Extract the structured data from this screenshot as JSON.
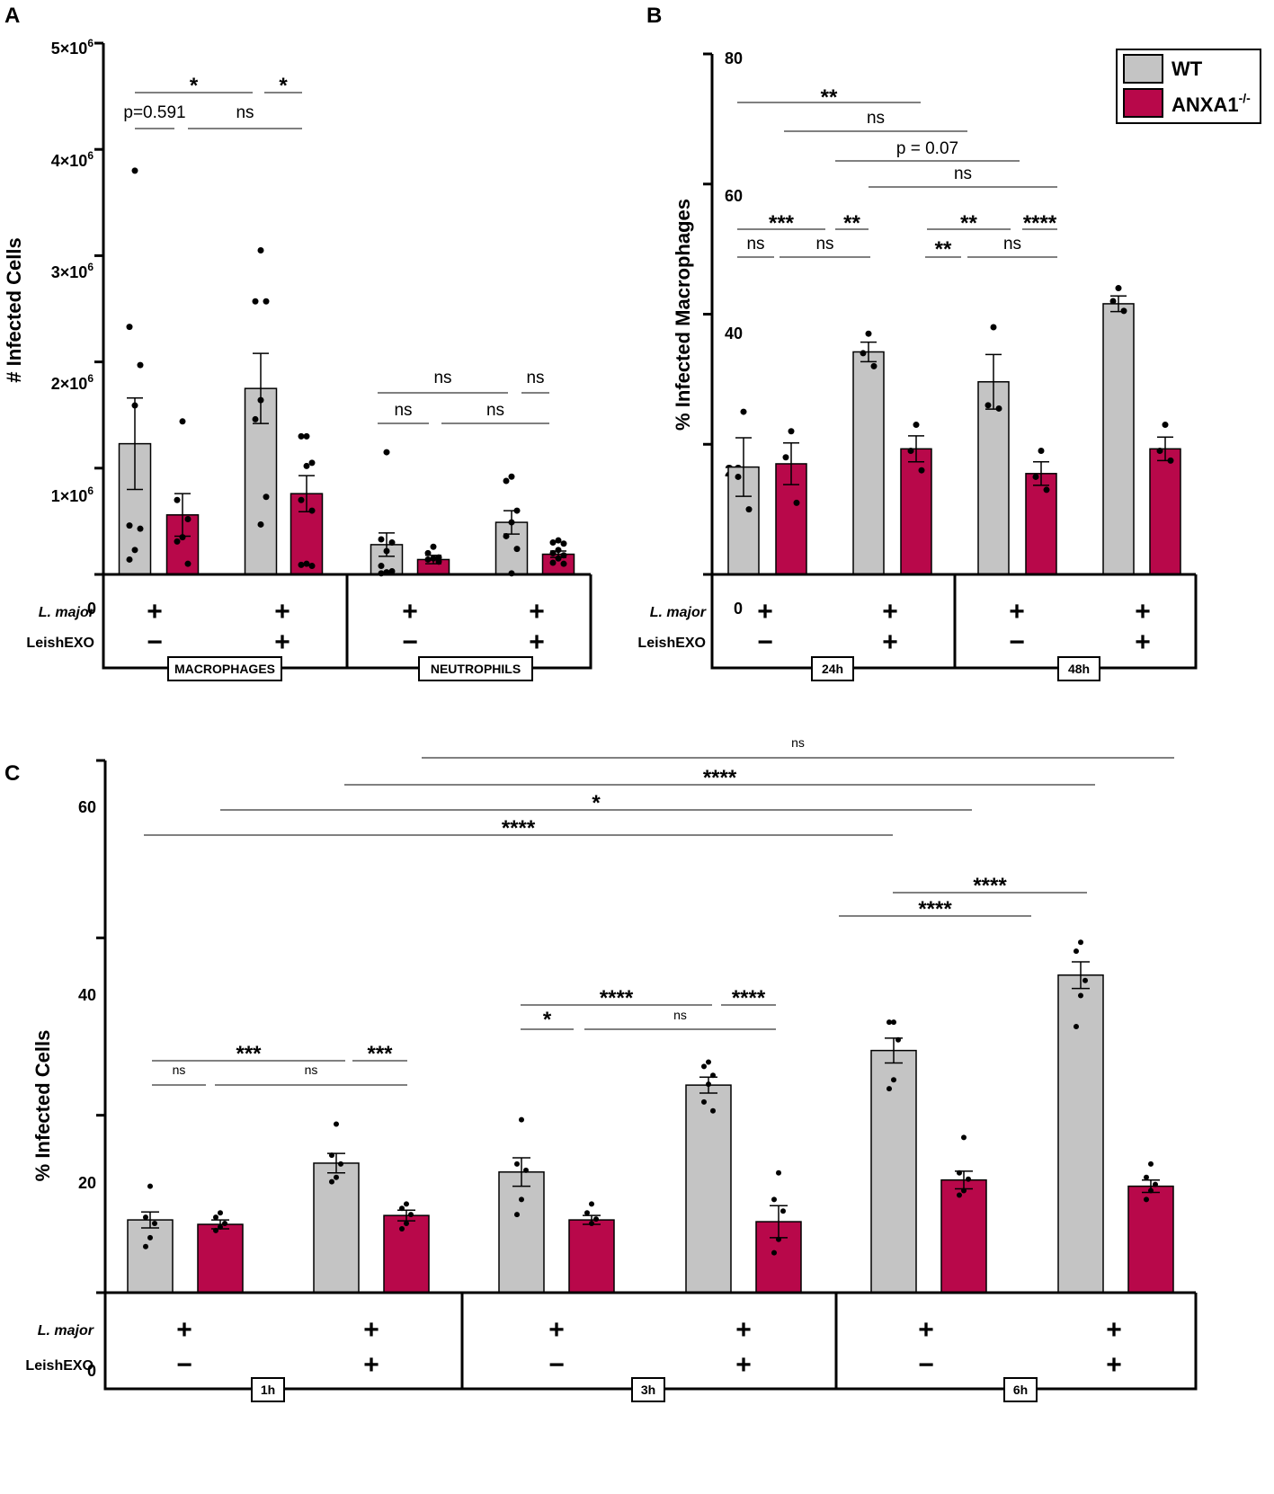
{
  "colors": {
    "wt": "#c4c4c4",
    "ko": "#b8084a",
    "axis": "#000000"
  },
  "chart_data": [
    {
      "panel": "A",
      "type": "bar",
      "ylabel": "# Infected Cells",
      "ylim": [
        0,
        5000000
      ],
      "yticks": [
        {
          "v": 0,
          "label": "0",
          "sup": ""
        },
        {
          "v": 1000000,
          "label": "1×10",
          "sup": "6"
        },
        {
          "v": 2000000,
          "label": "2×10",
          "sup": "6"
        },
        {
          "v": 3000000,
          "label": "3×10",
          "sup": "6"
        },
        {
          "v": 4000000,
          "label": "4×10",
          "sup": "6"
        },
        {
          "v": 5000000,
          "label": "5×10",
          "sup": "6"
        }
      ],
      "bars": [
        {
          "series": "WT",
          "mean": 1230000,
          "err": 430000,
          "points": [
            3800000,
            2330000,
            1970000,
            1590000,
            460000,
            430000,
            230000,
            140000
          ]
        },
        {
          "series": "ANXA1-/-",
          "mean": 560000,
          "err": 200000,
          "points": [
            1440000,
            700000,
            520000,
            350000,
            310000,
            100000
          ]
        },
        {
          "series": "WT",
          "mean": 1750000,
          "err": 330000,
          "points": [
            3050000,
            2570000,
            2570000,
            1640000,
            1460000,
            730000,
            470000
          ]
        },
        {
          "series": "ANXA1-/-",
          "mean": 760000,
          "err": 170000,
          "points": [
            1300000,
            1300000,
            1050000,
            1020000,
            700000,
            600000,
            100000,
            90000,
            80000
          ]
        },
        {
          "series": "WT",
          "mean": 280000,
          "err": 110000,
          "points": [
            1150000,
            330000,
            300000,
            220000,
            80000,
            30000,
            20000,
            10000
          ]
        },
        {
          "series": "ANXA1-/-",
          "mean": 140000,
          "err": 40000,
          "points": [
            260000,
            200000,
            160000,
            150000,
            140000,
            120000
          ]
        },
        {
          "series": "WT",
          "mean": 490000,
          "err": 110000,
          "points": [
            920000,
            880000,
            600000,
            490000,
            360000,
            240000,
            10000
          ]
        },
        {
          "series": "ANXA1-/-",
          "mean": 190000,
          "err": 30000,
          "points": [
            320000,
            300000,
            290000,
            230000,
            200000,
            180000,
            150000,
            110000,
            100000
          ]
        }
      ],
      "comparisons": [
        {
          "from": 0,
          "to": 2,
          "label": "*"
        },
        {
          "from": 2,
          "to": 3,
          "label": "*"
        },
        {
          "from": 0,
          "to": 1,
          "label": "p=0.591"
        },
        {
          "from": 1,
          "to": 3,
          "label": "ns"
        },
        {
          "from": 4,
          "to": 6,
          "label": "ns"
        },
        {
          "from": 6,
          "to": 7,
          "label": "ns"
        },
        {
          "from": 4,
          "to": 5,
          "label": "ns"
        },
        {
          "from": 5,
          "to": 7,
          "label": "ns"
        }
      ],
      "conditions": {
        "rows": [
          "L. major",
          "LeishEXO"
        ],
        "lmajor": [
          "+",
          "+",
          "+",
          "+"
        ],
        "leishexo": [
          "−",
          "+",
          "−",
          "+"
        ]
      },
      "groups": [
        "MACROPHAGES",
        "NEUTROPHILS"
      ]
    },
    {
      "panel": "B",
      "type": "bar",
      "ylabel": "% Infected Macrophages",
      "ylim": [
        0,
        80
      ],
      "yticks": [
        {
          "v": 0,
          "label": "0"
        },
        {
          "v": 20,
          "label": "20"
        },
        {
          "v": 40,
          "label": "40"
        },
        {
          "v": 60,
          "label": "60"
        },
        {
          "v": 80,
          "label": "80"
        }
      ],
      "bars": [
        {
          "series": "WT",
          "mean": 16.5,
          "err": 4.5,
          "points": [
            25,
            15,
            10
          ]
        },
        {
          "series": "ANXA1-/-",
          "mean": 17,
          "err": 3.2,
          "points": [
            22,
            18,
            11
          ]
        },
        {
          "series": "WT",
          "mean": 34.2,
          "err": 1.5,
          "points": [
            37,
            34,
            32
          ]
        },
        {
          "series": "ANXA1-/-",
          "mean": 19.3,
          "err": 2,
          "points": [
            23,
            19,
            16
          ]
        },
        {
          "series": "WT",
          "mean": 29.6,
          "err": 4.2,
          "points": [
            38,
            26,
            25.5
          ]
        },
        {
          "series": "ANXA1-/-",
          "mean": 15.5,
          "err": 1.8,
          "points": [
            19,
            15,
            13
          ]
        },
        {
          "series": "WT",
          "mean": 41.6,
          "err": 1.2,
          "points": [
            44,
            42,
            40.5
          ]
        },
        {
          "series": "ANXA1-/-",
          "mean": 19.3,
          "err": 1.8,
          "points": [
            23,
            19,
            17.5
          ]
        }
      ],
      "comparisons": [
        {
          "from": 0,
          "to": 4,
          "label": "**"
        },
        {
          "from": 1,
          "to": 5,
          "label": "ns"
        },
        {
          "from": 2,
          "to": 6,
          "label": "p = 0.07"
        },
        {
          "from": 3,
          "to": 7,
          "label": "ns"
        },
        {
          "from": 0,
          "to": 2,
          "label": "***"
        },
        {
          "from": 2,
          "to": 3,
          "label": "**"
        },
        {
          "from": 4,
          "to": 6,
          "label": "**"
        },
        {
          "from": 6,
          "to": 7,
          "label": "****"
        },
        {
          "from": 0,
          "to": 1,
          "label": "ns"
        },
        {
          "from": 1,
          "to": 3,
          "label": "ns"
        },
        {
          "from": 4,
          "to": 5,
          "label": "**"
        },
        {
          "from": 5,
          "to": 7,
          "label": "ns"
        }
      ],
      "conditions": {
        "rows": [
          "L. major",
          "LeishEXO"
        ],
        "lmajor": [
          "+",
          "+",
          "+",
          "+"
        ],
        "leishexo": [
          "−",
          "+",
          "−",
          "+"
        ]
      },
      "groups": [
        "24h",
        "48h"
      ],
      "legend": [
        {
          "name": "WT"
        },
        {
          "name": "ANXA1",
          "sup": "-/-"
        }
      ]
    },
    {
      "panel": "C",
      "type": "bar",
      "ylabel": "% Infected Cells",
      "ylim": [
        0,
        60
      ],
      "yticks": [
        {
          "v": 0,
          "label": "0"
        },
        {
          "v": 20,
          "label": "20"
        },
        {
          "v": 40,
          "label": "40"
        },
        {
          "v": 60,
          "label": "60"
        }
      ],
      "bars": [
        {
          "series": "WT",
          "mean": 8.2,
          "err": 0.9,
          "points": [
            12,
            8.5,
            7.8,
            6.2,
            5.2
          ]
        },
        {
          "series": "ANXA1-/-",
          "mean": 7.7,
          "err": 0.5,
          "points": [
            9,
            8.5,
            7.8,
            7.4,
            7
          ]
        },
        {
          "series": "WT",
          "mean": 14.6,
          "err": 1.1,
          "points": [
            19,
            15.5,
            14.5,
            13,
            12.5
          ]
        },
        {
          "series": "ANXA1-/-",
          "mean": 8.7,
          "err": 0.6,
          "points": [
            10,
            9.5,
            8.8,
            7.8,
            7.2
          ]
        },
        {
          "series": "WT",
          "mean": 13.6,
          "err": 1.6,
          "points": [
            19.5,
            14.5,
            13.8,
            10.5,
            8.8
          ]
        },
        {
          "series": "ANXA1-/-",
          "mean": 8.2,
          "err": 0.5,
          "points": [
            10,
            9,
            8.3,
            7.8
          ]
        },
        {
          "series": "WT",
          "mean": 23.4,
          "err": 0.9,
          "points": [
            26,
            25.5,
            24.5,
            23.5,
            21.5,
            20.5
          ]
        },
        {
          "series": "ANXA1-/-",
          "mean": 8,
          "err": 1.8,
          "points": [
            13.5,
            10.5,
            9.2,
            6,
            4.5
          ]
        },
        {
          "series": "WT",
          "mean": 27.3,
          "err": 1.4,
          "points": [
            30.5,
            30.5,
            28.5,
            24,
            23
          ]
        },
        {
          "series": "ANXA1-/-",
          "mean": 12.7,
          "err": 1,
          "points": [
            17.5,
            13.5,
            12.8,
            11.5,
            11
          ]
        },
        {
          "series": "WT",
          "mean": 35.8,
          "err": 1.5,
          "points": [
            39.5,
            38.5,
            35.2,
            33.5,
            30
          ]
        },
        {
          "series": "ANXA1-/-",
          "mean": 12,
          "err": 0.7,
          "points": [
            14.5,
            13,
            12.2,
            11.5,
            10.5
          ]
        }
      ],
      "comparisons": [
        {
          "from": 3,
          "to": 11,
          "label": "ns"
        },
        {
          "from": 2,
          "to": 10,
          "label": "****"
        },
        {
          "from": 1,
          "to": 9,
          "label": "*"
        },
        {
          "from": 0,
          "to": 8,
          "label": "****"
        },
        {
          "from": 8,
          "to": 10,
          "label": "****"
        },
        {
          "from": 8,
          "to": 9,
          "label": "****"
        },
        {
          "from": 0,
          "to": 2,
          "label": "***"
        },
        {
          "from": 2,
          "to": 3,
          "label": "***"
        },
        {
          "from": 0,
          "to": 1,
          "label": "ns"
        },
        {
          "from": 1,
          "to": 3,
          "label": "ns"
        },
        {
          "from": 4,
          "to": 6,
          "label": "****"
        },
        {
          "from": 6,
          "to": 7,
          "label": "****"
        },
        {
          "from": 4,
          "to": 5,
          "label": "*"
        },
        {
          "from": 5,
          "to": 7,
          "label": "ns"
        }
      ],
      "conditions": {
        "rows": [
          "L. major",
          "LeishEXO"
        ],
        "lmajor": [
          "+",
          "+",
          "+",
          "+",
          "+",
          "+"
        ],
        "leishexo": [
          "−",
          "+",
          "−",
          "+",
          "−",
          "+"
        ]
      },
      "groups": [
        "1h",
        "3h",
        "6h"
      ]
    }
  ]
}
